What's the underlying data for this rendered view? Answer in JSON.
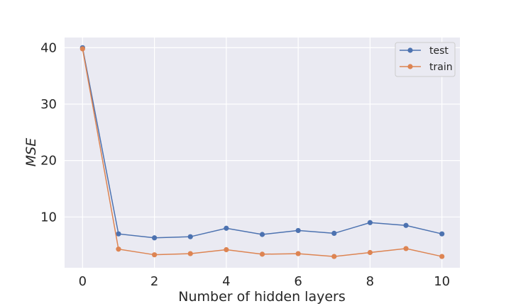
{
  "chart_data": {
    "type": "line",
    "xlabel": "Number of hidden layers",
    "ylabel": "MSE",
    "x": [
      0,
      1,
      2,
      3,
      4,
      5,
      6,
      7,
      8,
      9,
      10
    ],
    "xlim": [
      -0.5,
      10.5
    ],
    "ylim": [
      1.0,
      41.8
    ],
    "xticks": [
      0,
      2,
      4,
      6,
      8,
      10
    ],
    "yticks": [
      10,
      20,
      30,
      40
    ],
    "grid": true,
    "legend_position": "top-right",
    "series": [
      {
        "name": "test",
        "color": "#4c72b0",
        "values": [
          40.0,
          7.0,
          6.3,
          6.5,
          8.0,
          6.9,
          7.6,
          7.1,
          9.0,
          8.5,
          7.0
        ]
      },
      {
        "name": "train",
        "color": "#dd8452",
        "values": [
          39.8,
          4.3,
          3.3,
          3.5,
          4.2,
          3.4,
          3.5,
          3.0,
          3.7,
          4.4,
          3.0
        ]
      }
    ]
  }
}
